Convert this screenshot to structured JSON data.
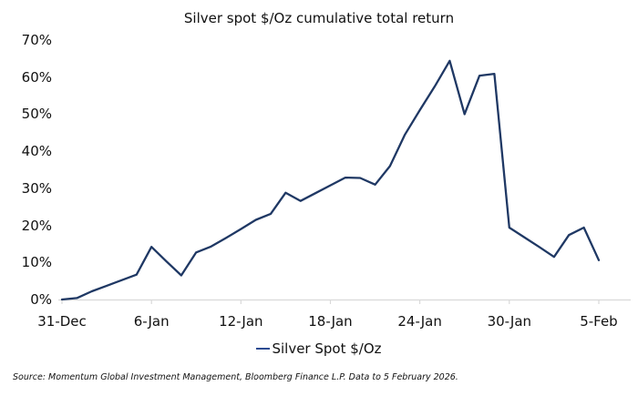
{
  "title": "Silver spot $/Oz cumulative total return",
  "legend": {
    "label": "Silver Spot $/Oz"
  },
  "source": "Source: Momentum Global Investment Management, Bloomberg Finance L.P. Data to 5 February 2026.",
  "colors": {
    "line": "#1f3864",
    "legend_swatch": "#2b4a91",
    "axis": "#d9d9d9",
    "text": "#111111",
    "background": "#ffffff"
  },
  "chart_data": {
    "type": "line",
    "title": "Silver spot $/Oz cumulative total return",
    "series": [
      {
        "name": "Silver Spot $/Oz",
        "color": "#1f3864",
        "x": [
          "31-Dec",
          "1-Jan",
          "2-Jan",
          "3-Jan",
          "4-Jan",
          "5-Jan",
          "6-Jan",
          "7-Jan",
          "8-Jan",
          "9-Jan",
          "10-Jan",
          "11-Jan",
          "12-Jan",
          "13-Jan",
          "14-Jan",
          "15-Jan",
          "16-Jan",
          "17-Jan",
          "18-Jan",
          "19-Jan",
          "20-Jan",
          "21-Jan",
          "22-Jan",
          "23-Jan",
          "24-Jan",
          "25-Jan",
          "26-Jan",
          "27-Jan",
          "28-Jan",
          "29-Jan",
          "30-Jan",
          "31-Jan",
          "1-Feb",
          "2-Feb",
          "3-Feb",
          "4-Feb",
          "5-Feb"
        ],
        "values_pct": [
          0,
          0.4,
          2.2,
          3.7,
          5.2,
          6.7,
          14.2,
          10.3,
          6.5,
          12.7,
          14.3,
          16.6,
          19.0,
          21.5,
          23.1,
          28.8,
          26.6,
          28.7,
          30.8,
          32.9,
          32.8,
          31.0,
          36.0,
          44.5,
          51.1,
          57.5,
          64.4,
          50.0,
          60.4,
          60.9,
          19.4,
          16.8,
          14.2,
          11.5,
          17.4,
          19.4,
          10.6
        ]
      }
    ],
    "xlabel": "",
    "ylabel": "",
    "ylim": [
      0,
      70
    ],
    "y_ticks_pct": [
      0,
      10,
      20,
      30,
      40,
      50,
      60,
      70
    ],
    "y_tick_suffix": "%",
    "x_tick_labels": [
      "31-Dec",
      "6-Jan",
      "12-Jan",
      "18-Jan",
      "24-Jan",
      "30-Jan",
      "5-Feb"
    ],
    "x_tick_day_indices": [
      0,
      6,
      12,
      18,
      24,
      30,
      36
    ],
    "grid": false,
    "legend_position": "bottom-center"
  }
}
